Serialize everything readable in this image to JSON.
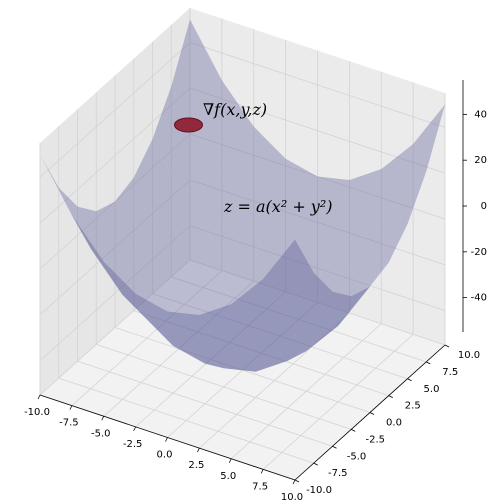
{
  "chart_data": {
    "type": "surface3d",
    "annotations": [
      "∇f(x,y,z)",
      "z = a(x² + y²)"
    ],
    "x": [
      -10,
      -7.5,
      -5,
      -2.5,
      0,
      2.5,
      5,
      7.5,
      10
    ],
    "y": [
      -10,
      -7.5,
      -5,
      -2.5,
      0,
      2.5,
      5,
      7.5,
      10
    ],
    "z": [
      [
        50,
        28.125,
        12.5,
        3.125,
        0,
        3.125,
        12.5,
        28.125,
        50
      ],
      [
        28.125,
        6.25,
        -9.375,
        -18.75,
        -21.875,
        -18.75,
        -9.375,
        6.25,
        28.125
      ],
      [
        12.5,
        -9.375,
        -25,
        -34.375,
        -37.5,
        -34.375,
        -25,
        -9.375,
        12.5
      ],
      [
        3.125,
        -18.75,
        -34.375,
        -43.75,
        -46.875,
        -43.75,
        -34.375,
        -18.75,
        3.125
      ],
      [
        0,
        -21.875,
        -37.5,
        -46.875,
        -50,
        -46.875,
        -37.5,
        -21.875,
        0
      ],
      [
        3.125,
        -18.75,
        -34.375,
        -43.75,
        -46.875,
        -43.75,
        -34.375,
        -18.75,
        3.125
      ],
      [
        12.5,
        -9.375,
        -25,
        -34.375,
        -37.5,
        -34.375,
        -25,
        -9.375,
        12.5
      ],
      [
        28.125,
        6.25,
        -9.375,
        -18.75,
        -21.875,
        -18.75,
        -9.375,
        6.25,
        28.125
      ],
      [
        50,
        28.125,
        12.5,
        3.125,
        0,
        3.125,
        12.5,
        28.125,
        50
      ]
    ],
    "color": "#4c5090",
    "point": {
      "x": -6,
      "y": 3,
      "z": 32,
      "color": "#8b1a2b"
    },
    "xlim": [
      -10,
      10
    ],
    "ylim": [
      -10,
      10
    ],
    "zlim": [
      -55,
      55
    ],
    "xticks": [
      {
        "value": -10,
        "label": "-10.0"
      },
      {
        "value": -7.5,
        "label": "-7.5"
      },
      {
        "value": -5,
        "label": "-5.0"
      },
      {
        "value": -2.5,
        "label": "-2.5"
      },
      {
        "value": 0,
        "label": "0.0"
      },
      {
        "value": 2.5,
        "label": "2.5"
      },
      {
        "value": 5,
        "label": "5.0"
      },
      {
        "value": 7.5,
        "label": "7.5"
      },
      {
        "value": 10,
        "label": "10.0"
      }
    ],
    "yticks": [
      {
        "value": -10,
        "label": "-10.0"
      },
      {
        "value": -7.5,
        "label": "-7.5"
      },
      {
        "value": -5,
        "label": "-5.0"
      },
      {
        "value": -2.5,
        "label": "-2.5"
      },
      {
        "value": 0,
        "label": "0.0"
      },
      {
        "value": 2.5,
        "label": "2.5"
      },
      {
        "value": 5,
        "label": "5.0"
      },
      {
        "value": 7.5,
        "label": "7.5"
      },
      {
        "value": 10,
        "label": "10.0"
      }
    ],
    "zticks": [
      -40,
      -20,
      0,
      20,
      40
    ],
    "grid": true
  }
}
